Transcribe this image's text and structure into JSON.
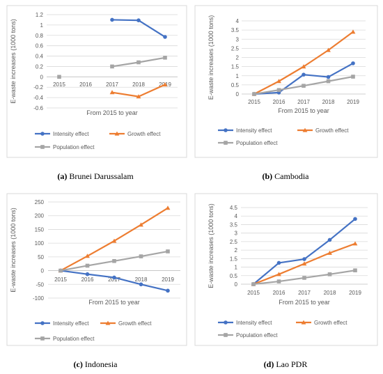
{
  "colors": {
    "intensity": "#4472c4",
    "growth": "#ed7d31",
    "population": "#a5a5a5"
  },
  "legend_labels": {
    "intensity": "Intensity effect",
    "growth": "Growth effect",
    "population": "Population effect"
  },
  "chart_data": [
    {
      "type": "line",
      "id": "a",
      "caption_letter": "(a)",
      "caption_title": " Brunei Darussalam",
      "xlabel": "From 2015 to year",
      "ylabel": "E-waste increases (1000 tons)",
      "categories": [
        "2015",
        "2016",
        "2017",
        "2018",
        "2019"
      ],
      "ylim": [
        -0.6,
        1.2
      ],
      "yticks": [
        "-0.6",
        "-0.4",
        "-0.2",
        "0",
        "0.2",
        "0.4",
        "0.6",
        "0.8",
        "1",
        "1.2"
      ],
      "ytick_values": [
        -0.6,
        -0.4,
        -0.2,
        0,
        0.2,
        0.4,
        0.6,
        0.8,
        1,
        1.2
      ],
      "series": [
        {
          "name": "Intensity effect",
          "key": "intensity",
          "marker": "circle",
          "values": [
            null,
            null,
            1.1,
            1.09,
            0.77
          ]
        },
        {
          "name": "Growth effect",
          "key": "growth",
          "marker": "triangle",
          "values": [
            null,
            null,
            -0.3,
            -0.38,
            -0.15
          ]
        },
        {
          "name": "Population effect",
          "key": "population",
          "marker": "square",
          "values": [
            0,
            null,
            0.2,
            0.28,
            0.37
          ]
        }
      ]
    },
    {
      "type": "line",
      "id": "b",
      "caption_letter": "(b)",
      "caption_title": " Cambodia",
      "xlabel": "From 2015 to year",
      "ylabel": "E-waste increases (1000 tons)",
      "categories": [
        "2015",
        "2016",
        "2017",
        "2018",
        "2019"
      ],
      "ylim": [
        0,
        4
      ],
      "yticks": [
        "0",
        "0.5",
        "1",
        "1.5",
        "2",
        "2.5",
        "3",
        "3.5",
        "4"
      ],
      "ytick_values": [
        0,
        0.5,
        1,
        1.5,
        2,
        2.5,
        3,
        3.5,
        4
      ],
      "series": [
        {
          "name": "Intensity effect",
          "key": "intensity",
          "marker": "circle",
          "values": [
            0,
            0.08,
            1.06,
            0.93,
            1.68
          ]
        },
        {
          "name": "Growth effect",
          "key": "growth",
          "marker": "triangle",
          "values": [
            0,
            0.7,
            1.5,
            2.4,
            3.4
          ]
        },
        {
          "name": "Population effect",
          "key": "population",
          "marker": "square",
          "values": [
            0,
            0.22,
            0.45,
            0.7,
            0.95
          ]
        }
      ]
    },
    {
      "type": "line",
      "id": "c",
      "caption_letter": "(c)",
      "caption_title": " Indonesia",
      "xlabel": "From 2015 to year",
      "ylabel": "E-waste increases (1000 tons)",
      "categories": [
        "2015",
        "2016",
        "2017",
        "2018",
        "2019"
      ],
      "ylim": [
        -100,
        250
      ],
      "yticks": [
        "-100",
        "-50",
        "0",
        "50",
        "100",
        "150",
        "200",
        "250"
      ],
      "ytick_values": [
        -100,
        -50,
        0,
        50,
        100,
        150,
        200,
        250
      ],
      "series": [
        {
          "name": "Intensity effect",
          "key": "intensity",
          "marker": "circle",
          "values": [
            0,
            -13,
            -25,
            -50,
            -73
          ]
        },
        {
          "name": "Growth effect",
          "key": "growth",
          "marker": "triangle",
          "values": [
            0,
            53,
            108,
            167,
            228
          ]
        },
        {
          "name": "Population effect",
          "key": "population",
          "marker": "square",
          "values": [
            0,
            18,
            35,
            52,
            70
          ]
        }
      ]
    },
    {
      "type": "line",
      "id": "d",
      "caption_letter": "(d)",
      "caption_title": " Lao PDR",
      "xlabel": "From 2015 to year",
      "ylabel": "E-waste increases (1000 tons)",
      "categories": [
        "2015",
        "2016",
        "2017",
        "2018",
        "2019"
      ],
      "ylim": [
        0,
        4.5
      ],
      "yticks": [
        "0",
        "0.5",
        "1",
        "1.5",
        "2",
        "2.5",
        "3",
        "3.5",
        "4",
        "4.5"
      ],
      "ytick_values": [
        0,
        0.5,
        1,
        1.5,
        2,
        2.5,
        3,
        3.5,
        4,
        4.5
      ],
      "series": [
        {
          "name": "Intensity effect",
          "key": "intensity",
          "marker": "circle",
          "values": [
            0,
            1.25,
            1.47,
            2.6,
            3.83
          ]
        },
        {
          "name": "Growth effect",
          "key": "growth",
          "marker": "triangle",
          "values": [
            0,
            0.58,
            1.2,
            1.83,
            2.38
          ]
        },
        {
          "name": "Population effect",
          "key": "population",
          "marker": "square",
          "values": [
            0,
            0.16,
            0.37,
            0.58,
            0.81
          ]
        }
      ]
    }
  ]
}
